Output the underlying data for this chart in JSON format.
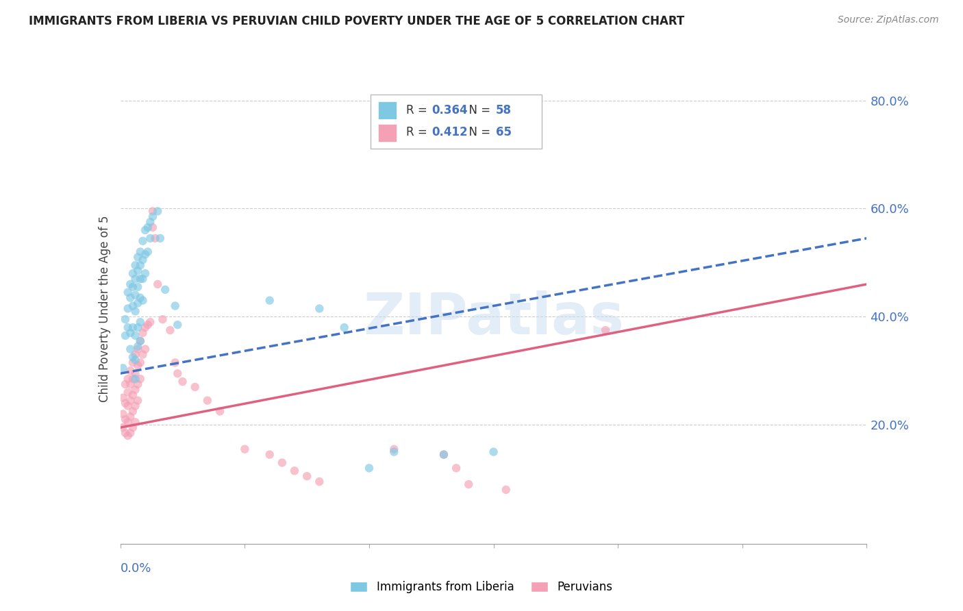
{
  "title": "IMMIGRANTS FROM LIBERIA VS PERUVIAN CHILD POVERTY UNDER THE AGE OF 5 CORRELATION CHART",
  "source": "Source: ZipAtlas.com",
  "ylabel": "Child Poverty Under the Age of 5",
  "xlim": [
    0.0,
    0.3
  ],
  "ylim": [
    -0.02,
    0.85
  ],
  "yticks": [
    0.2,
    0.4,
    0.6,
    0.8
  ],
  "ytick_labels": [
    "20.0%",
    "40.0%",
    "60.0%",
    "80.0%"
  ],
  "xtick_positions": [
    0.0,
    0.05,
    0.1,
    0.15,
    0.2,
    0.25,
    0.3
  ],
  "blue_color": "#7ec8e3",
  "pink_color": "#f4a0b5",
  "blue_scatter": [
    [
      0.001,
      0.305
    ],
    [
      0.002,
      0.395
    ],
    [
      0.002,
      0.365
    ],
    [
      0.003,
      0.445
    ],
    [
      0.003,
      0.415
    ],
    [
      0.003,
      0.38
    ],
    [
      0.004,
      0.46
    ],
    [
      0.004,
      0.435
    ],
    [
      0.004,
      0.37
    ],
    [
      0.004,
      0.34
    ],
    [
      0.005,
      0.48
    ],
    [
      0.005,
      0.455
    ],
    [
      0.005,
      0.42
    ],
    [
      0.005,
      0.38
    ],
    [
      0.005,
      0.325
    ],
    [
      0.006,
      0.495
    ],
    [
      0.006,
      0.47
    ],
    [
      0.006,
      0.44
    ],
    [
      0.006,
      0.41
    ],
    [
      0.006,
      0.365
    ],
    [
      0.006,
      0.32
    ],
    [
      0.006,
      0.285
    ],
    [
      0.007,
      0.51
    ],
    [
      0.007,
      0.485
    ],
    [
      0.007,
      0.455
    ],
    [
      0.007,
      0.425
    ],
    [
      0.007,
      0.38
    ],
    [
      0.007,
      0.345
    ],
    [
      0.008,
      0.52
    ],
    [
      0.008,
      0.495
    ],
    [
      0.008,
      0.47
    ],
    [
      0.008,
      0.435
    ],
    [
      0.008,
      0.39
    ],
    [
      0.008,
      0.355
    ],
    [
      0.009,
      0.54
    ],
    [
      0.009,
      0.505
    ],
    [
      0.009,
      0.47
    ],
    [
      0.009,
      0.43
    ],
    [
      0.01,
      0.56
    ],
    [
      0.01,
      0.515
    ],
    [
      0.01,
      0.48
    ],
    [
      0.011,
      0.565
    ],
    [
      0.011,
      0.52
    ],
    [
      0.012,
      0.575
    ],
    [
      0.012,
      0.545
    ],
    [
      0.013,
      0.585
    ],
    [
      0.015,
      0.595
    ],
    [
      0.016,
      0.545
    ],
    [
      0.018,
      0.45
    ],
    [
      0.022,
      0.42
    ],
    [
      0.023,
      0.385
    ],
    [
      0.06,
      0.43
    ],
    [
      0.08,
      0.415
    ],
    [
      0.09,
      0.38
    ],
    [
      0.1,
      0.12
    ],
    [
      0.11,
      0.15
    ],
    [
      0.13,
      0.145
    ],
    [
      0.15,
      0.15
    ]
  ],
  "pink_scatter": [
    [
      0.001,
      0.25
    ],
    [
      0.001,
      0.22
    ],
    [
      0.001,
      0.195
    ],
    [
      0.002,
      0.275
    ],
    [
      0.002,
      0.24
    ],
    [
      0.002,
      0.21
    ],
    [
      0.002,
      0.185
    ],
    [
      0.003,
      0.285
    ],
    [
      0.003,
      0.26
    ],
    [
      0.003,
      0.235
    ],
    [
      0.003,
      0.205
    ],
    [
      0.003,
      0.18
    ],
    [
      0.004,
      0.3
    ],
    [
      0.004,
      0.275
    ],
    [
      0.004,
      0.245
    ],
    [
      0.004,
      0.215
    ],
    [
      0.004,
      0.185
    ],
    [
      0.005,
      0.315
    ],
    [
      0.005,
      0.285
    ],
    [
      0.005,
      0.255
    ],
    [
      0.005,
      0.225
    ],
    [
      0.005,
      0.195
    ],
    [
      0.006,
      0.33
    ],
    [
      0.006,
      0.295
    ],
    [
      0.006,
      0.265
    ],
    [
      0.006,
      0.235
    ],
    [
      0.006,
      0.205
    ],
    [
      0.007,
      0.34
    ],
    [
      0.007,
      0.31
    ],
    [
      0.007,
      0.275
    ],
    [
      0.007,
      0.245
    ],
    [
      0.008,
      0.355
    ],
    [
      0.008,
      0.315
    ],
    [
      0.008,
      0.285
    ],
    [
      0.009,
      0.37
    ],
    [
      0.009,
      0.33
    ],
    [
      0.01,
      0.38
    ],
    [
      0.01,
      0.34
    ],
    [
      0.011,
      0.385
    ],
    [
      0.012,
      0.39
    ],
    [
      0.013,
      0.595
    ],
    [
      0.013,
      0.565
    ],
    [
      0.014,
      0.545
    ],
    [
      0.015,
      0.46
    ],
    [
      0.017,
      0.395
    ],
    [
      0.02,
      0.375
    ],
    [
      0.022,
      0.315
    ],
    [
      0.023,
      0.295
    ],
    [
      0.025,
      0.28
    ],
    [
      0.03,
      0.27
    ],
    [
      0.035,
      0.245
    ],
    [
      0.04,
      0.225
    ],
    [
      0.05,
      0.155
    ],
    [
      0.06,
      0.145
    ],
    [
      0.065,
      0.13
    ],
    [
      0.07,
      0.115
    ],
    [
      0.075,
      0.105
    ],
    [
      0.08,
      0.095
    ],
    [
      0.11,
      0.155
    ],
    [
      0.13,
      0.145
    ],
    [
      0.135,
      0.12
    ],
    [
      0.14,
      0.09
    ],
    [
      0.155,
      0.08
    ],
    [
      0.195,
      0.375
    ]
  ],
  "blue_line": {
    "x0": 0.0,
    "y0": 0.295,
    "x1": 0.3,
    "y1": 0.545
  },
  "pink_line": {
    "x0": 0.0,
    "y0": 0.195,
    "x1": 0.3,
    "y1": 0.46
  },
  "watermark": "ZIPatlas",
  "grid_color": "#cccccc",
  "axis_label_color": "#4472c4",
  "text_color": "#222222",
  "source_color": "#888888"
}
